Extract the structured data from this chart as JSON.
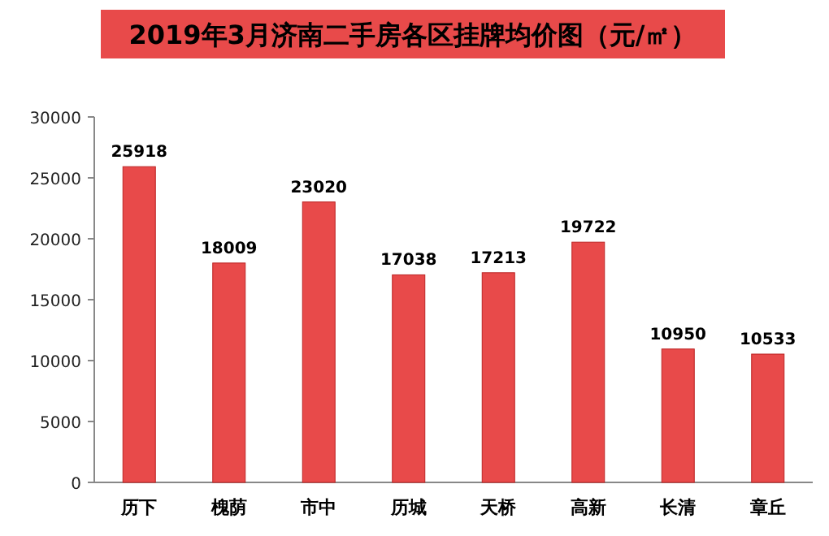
{
  "chart_data": {
    "type": "bar",
    "title": "2019年3月济南二手房各区挂牌均价图（元/㎡）",
    "categories": [
      "历下",
      "槐荫",
      "市中",
      "历城",
      "天桥",
      "高新",
      "长清",
      "章丘"
    ],
    "values": [
      25918,
      18009,
      23020,
      17038,
      17213,
      19722,
      10950,
      10533
    ],
    "color": "#e84a4a",
    "ylim": [
      0,
      30000
    ],
    "yticks": [
      0,
      5000,
      10000,
      15000,
      20000,
      25000,
      30000
    ],
    "data_labels": true
  }
}
